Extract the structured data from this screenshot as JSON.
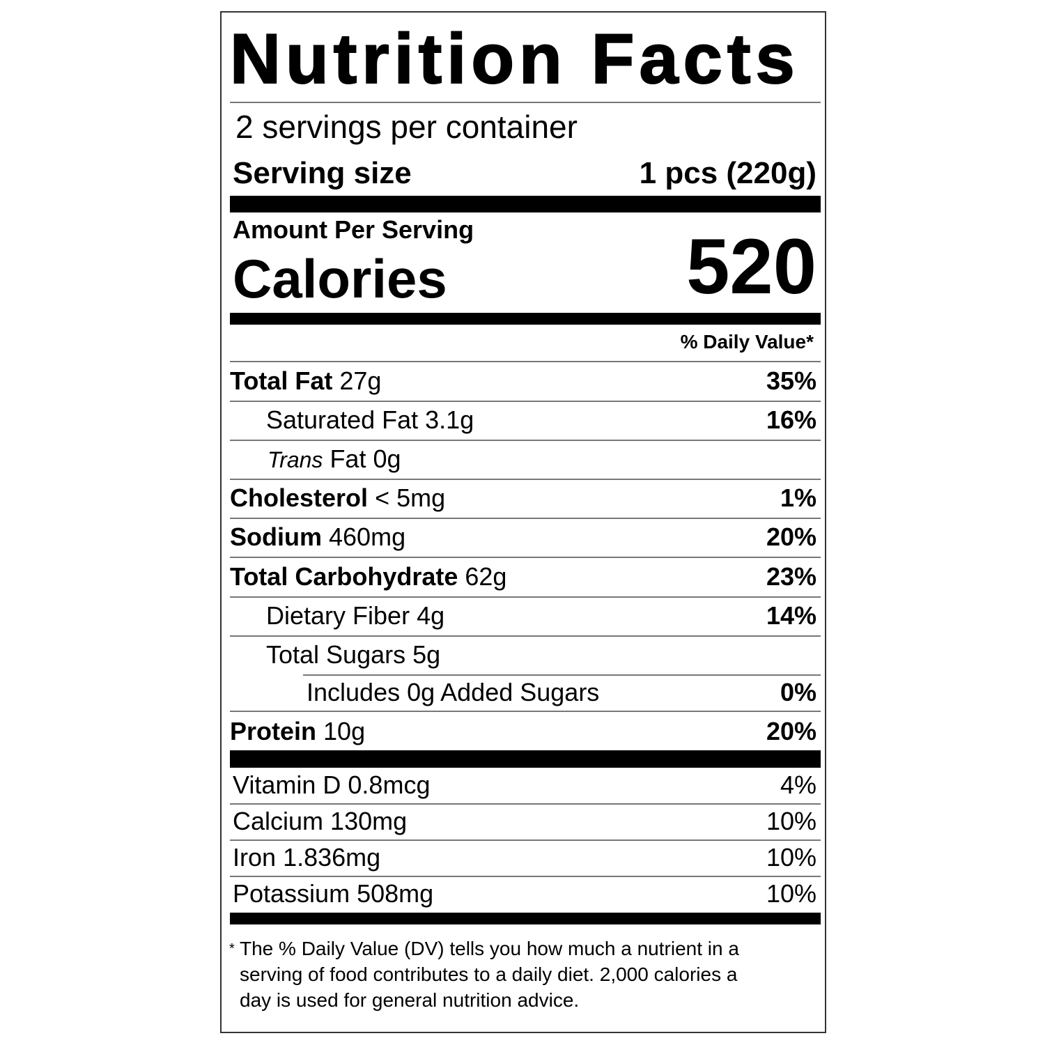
{
  "title": "Nutrition Facts",
  "servings_per_container": "2 servings per container",
  "serving_size": {
    "label": "Serving size",
    "value": "1 pcs (220g)"
  },
  "amount_per_serving": "Amount Per Serving",
  "calories": {
    "label": "Calories",
    "value": "520"
  },
  "daily_value_header": "% Daily Value*",
  "nutrients": [
    {
      "name": "Total Fat",
      "amount": "27g",
      "percent": "35%"
    },
    {
      "name": "Saturated Fat",
      "amount": "3.1g",
      "percent": "16%"
    },
    {
      "name_italic": "Trans",
      "name": "Fat",
      "amount": "0g"
    },
    {
      "name": "Cholesterol",
      "amount": "< 5mg",
      "percent": "1%"
    },
    {
      "name": "Sodium",
      "amount": "460mg",
      "percent": "20%"
    },
    {
      "name": "Total Carbohydrate",
      "amount": "62g",
      "percent": "23%"
    },
    {
      "name": "Dietary Fiber",
      "amount": "4g",
      "percent": "14%"
    },
    {
      "name": "Total Sugars",
      "amount": "5g"
    },
    {
      "name": "Includes 0g Added Sugars",
      "percent": "0%"
    },
    {
      "name": "Protein",
      "amount": "10g",
      "percent": "20%"
    }
  ],
  "vitamins": [
    {
      "name": "Vitamin D",
      "amount": "0.8mcg",
      "percent": "4%"
    },
    {
      "name": "Calcium",
      "amount": "130mg",
      "percent": "10%"
    },
    {
      "name": "Iron",
      "amount": "1.836mg",
      "percent": "10%"
    },
    {
      "name": "Potassium",
      "amount": "508mg",
      "percent": "10%"
    }
  ],
  "footnote": {
    "asterisk": "*",
    "lines": [
      "The % Daily Value (DV) tells you how much a nutrient in a",
      "serving of food contributes to a daily diet. 2,000 calories a",
      "day is used for general nutrition advice."
    ]
  }
}
